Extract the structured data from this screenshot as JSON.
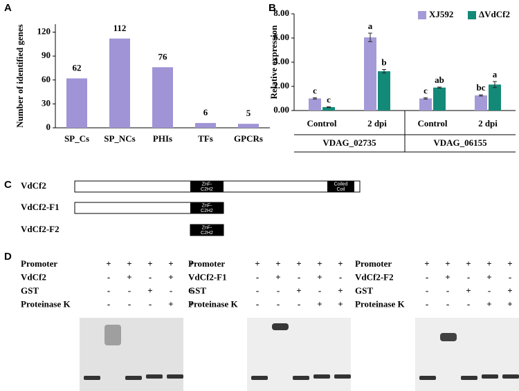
{
  "chart_data": [
    {
      "type": "bar",
      "panel_label": "A",
      "y_label": "Number of identified genes",
      "categories": [
        "SP_Cs",
        "SP_NCs",
        "PHIs",
        "TFs",
        "GPCRs"
      ],
      "values": [
        62,
        112,
        76,
        6,
        5
      ],
      "color": "#a094d6",
      "ylim": [
        0,
        130
      ],
      "yticks": [
        0,
        30,
        60,
        90,
        120
      ]
    },
    {
      "type": "grouped_bar",
      "panel_label": "B",
      "y_label": "Relative expression",
      "categories": [
        "Control",
        "2 dpi",
        "Control",
        "2 dpi"
      ],
      "groups": [
        "VDAG_02735",
        "VDAG_06155"
      ],
      "series": [
        {
          "name": "XJ592",
          "color": "#a59ad8",
          "values": [
            1.0,
            6.05,
            1.0,
            1.25
          ],
          "errors": [
            0.05,
            0.35,
            0.05,
            0.05
          ],
          "letters": [
            "c",
            "a",
            "c",
            "bc"
          ]
        },
        {
          "name": "ΔVdCf2",
          "color": "#138a78",
          "values": [
            0.28,
            3.25,
            1.9,
            2.15
          ],
          "errors": [
            0.03,
            0.15,
            0.04,
            0.25
          ],
          "letters": [
            "c",
            "b",
            "ab",
            "a"
          ]
        }
      ],
      "ylim": [
        0,
        8
      ],
      "yticks": [
        {
          "value": 0,
          "label": "0.00"
        },
        {
          "value": 2,
          "label": "2.00"
        },
        {
          "value": 4,
          "label": "4.00"
        },
        {
          "value": 6,
          "label": "6.00"
        },
        {
          "value": 8,
          "label": "8.00"
        }
      ],
      "legend": "top-right"
    }
  ],
  "panel_c": {
    "label": "C",
    "proteins": [
      {
        "name": "VdCf2",
        "domains": [
          {
            "lines": [
              "ZnF-",
              "C2H2"
            ]
          },
          {
            "lines": [
              "Coiled",
              "Coil"
            ]
          }
        ]
      },
      {
        "name": "VdCf2-F1",
        "domains": [
          {
            "lines": [
              "ZnF-",
              "C2H2"
            ]
          }
        ]
      },
      {
        "name": "VdCf2-F2",
        "domains": [
          {
            "lines": [
              "ZnF-",
              "C2H2"
            ]
          }
        ]
      }
    ]
  },
  "panel_d": {
    "label": "D",
    "assays": [
      {
        "rows": [
          {
            "label": "Promoter",
            "cells": [
              "+",
              "+",
              "+",
              "+",
              "+"
            ]
          },
          {
            "label": "VdCf2",
            "cells": [
              "-",
              "+",
              "-",
              "+",
              "-"
            ]
          },
          {
            "label": "GST",
            "cells": [
              "-",
              "-",
              "+",
              "-",
              "+"
            ]
          },
          {
            "label": "Proteinase K",
            "cells": [
              "-",
              "-",
              "-",
              "+",
              "+"
            ]
          }
        ]
      },
      {
        "rows": [
          {
            "label": "Promoter",
            "cells": [
              "+",
              "+",
              "+",
              "+",
              "+"
            ]
          },
          {
            "label": "VdCf2-F1",
            "cells": [
              "-",
              "+",
              "-",
              "+",
              "-"
            ]
          },
          {
            "label": "GST",
            "cells": [
              "-",
              "-",
              "+",
              "-",
              "+"
            ]
          },
          {
            "label": "Proteinase K",
            "cells": [
              "-",
              "-",
              "-",
              "+",
              "+"
            ]
          }
        ]
      },
      {
        "rows": [
          {
            "label": "Promoter",
            "cells": [
              "+",
              "+",
              "+",
              "+",
              "+"
            ]
          },
          {
            "label": "VdCf2-F2",
            "cells": [
              "-",
              "+",
              "-",
              "+",
              "-"
            ]
          },
          {
            "label": "GST",
            "cells": [
              "-",
              "-",
              "+",
              "-",
              "+"
            ]
          },
          {
            "label": "Proteinase K",
            "cells": [
              "-",
              "-",
              "-",
              "+",
              "+"
            ]
          }
        ]
      }
    ]
  }
}
